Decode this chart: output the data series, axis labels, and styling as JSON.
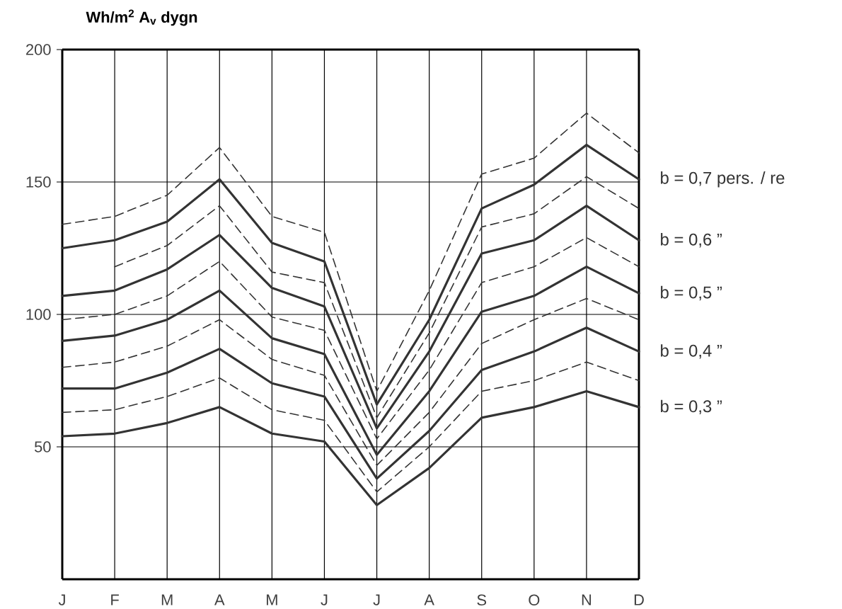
{
  "chart_data": {
    "type": "line",
    "ylabel": "Wh/m$^{2}$ A$_{v}$ dygn",
    "categories": [
      "J",
      "F",
      "M",
      "A",
      "M",
      "J",
      "J",
      "A",
      "S",
      "O",
      "N",
      "D"
    ],
    "ylim": [
      0,
      200
    ],
    "yticks": [
      50,
      100,
      150,
      200
    ],
    "grid": true,
    "legend": false,
    "marker": "none",
    "series": [
      {
        "color": "#333333",
        "line_style": "dashed",
        "values": [
          134,
          137,
          145,
          163,
          137,
          131,
          71,
          109,
          153,
          159,
          176,
          161
        ]
      },
      {
        "name": "b = 0,7 pers. / re",
        "color": "#333333",
        "line_style": "solid",
        "values": [
          125,
          128,
          135,
          151,
          127,
          120,
          66,
          98,
          140,
          149,
          164,
          151
        ]
      },
      {
        "color": "#333333",
        "line_style": "dashed",
        "values": [
          null,
          118,
          126,
          141,
          116,
          112,
          61,
          93,
          133,
          138,
          152,
          140
        ]
      },
      {
        "name": "b = 0,6 ”",
        "color": "#333333",
        "line_style": "solid",
        "values": [
          107,
          109,
          117,
          130,
          110,
          103,
          57,
          86,
          123,
          128,
          141,
          128
        ]
      },
      {
        "color": "#333333",
        "line_style": "dashed",
        "values": [
          98,
          100,
          107,
          120,
          99,
          94,
          53,
          79,
          112,
          118,
          129,
          118
        ]
      },
      {
        "name": "b = 0,5 ”",
        "color": "#333333",
        "line_style": "solid",
        "values": [
          90,
          92,
          98,
          109,
          91,
          85,
          47,
          71,
          101,
          107,
          118,
          108
        ]
      },
      {
        "color": "#333333",
        "line_style": "dashed",
        "values": [
          80,
          82,
          88,
          98,
          83,
          77,
          43,
          63,
          89,
          98,
          106,
          98
        ]
      },
      {
        "name": "b = 0,4 ”",
        "color": "#333333",
        "line_style": "solid",
        "values": [
          72,
          72,
          78,
          87,
          74,
          69,
          38,
          56,
          79,
          86,
          95,
          86
        ]
      },
      {
        "color": "#333333",
        "line_style": "dashed",
        "values": [
          63,
          64,
          69,
          76,
          64,
          60,
          33,
          50,
          71,
          75,
          82,
          75
        ]
      },
      {
        "name": "b = 0,3 ”",
        "color": "#333333",
        "line_style": "solid",
        "values": [
          54,
          55,
          59,
          65,
          55,
          52,
          28,
          42,
          61,
          65,
          71,
          65
        ]
      }
    ]
  }
}
